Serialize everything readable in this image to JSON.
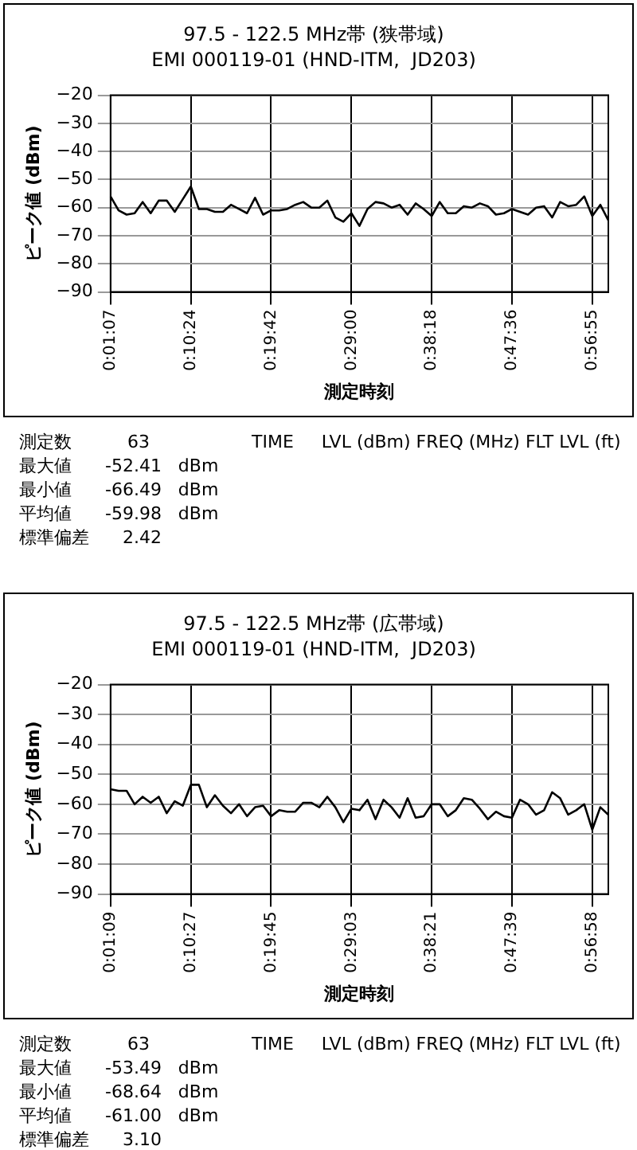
{
  "chart_data": [
    {
      "type": "line",
      "title": "97.5 - 122.5 MHz帯 (狭帯域)",
      "subtitle": "EMI 000119-01 (HND-ITM,  JD203)",
      "xlabel": "測定時刻",
      "ylabel": "ピーク値 (dBm)",
      "categories": [
        "0:01:07",
        null,
        null,
        null,
        null,
        null,
        null,
        null,
        null,
        null,
        "0:10:24",
        null,
        null,
        null,
        null,
        null,
        null,
        null,
        null,
        null,
        "0:19:42",
        null,
        null,
        null,
        null,
        null,
        null,
        null,
        null,
        null,
        "0:29:00",
        null,
        null,
        null,
        null,
        null,
        null,
        null,
        null,
        null,
        "0:38:18",
        null,
        null,
        null,
        null,
        null,
        null,
        null,
        null,
        null,
        "0:47:36",
        null,
        null,
        null,
        null,
        null,
        null,
        null,
        null,
        null,
        "0:56:55",
        null,
        null
      ],
      "series": [
        {
          "color": "#000000",
          "values": [
            -56,
            -61,
            -62.5,
            -62,
            -58,
            -62,
            -57.5,
            -57.5,
            -61.5,
            -57,
            -52.5,
            -60.5,
            -60.5,
            -61.5,
            -61.5,
            -59,
            -60.5,
            -62,
            -56.5,
            -62.5,
            -61,
            -61,
            -60.5,
            -59,
            -58,
            -60,
            -60,
            -57.5,
            -63.5,
            -65,
            -62,
            -66.5,
            -60.5,
            -58,
            -58.5,
            -60,
            -59,
            -62.5,
            -58.5,
            -60.5,
            -63,
            -58,
            -62,
            -62,
            -59.5,
            -60,
            -58.5,
            -59.5,
            -62.5,
            -62,
            -60.5,
            -61.5,
            -62.5,
            -60,
            -59.5,
            -63.5,
            -58,
            -59.5,
            -59,
            -56,
            -63,
            -59,
            -64.5
          ]
        }
      ],
      "ylim": [
        -90,
        -20
      ],
      "yticks": [
        -90,
        -80,
        -70,
        -60,
        -50,
        -40,
        -30,
        -20
      ],
      "grid": true,
      "legend": false,
      "marker": "none",
      "line_style": "solid",
      "annotations": [
        "TIME     LVL (dBm) FREQ (MHz) FLT LVL (ft)",
        "測定数          63",
        "最大値      -52.41   dBm",
        "最小値      -66.49   dBm",
        "平均値      -59.98   dBm",
        "標準偏差      2.42"
      ]
    },
    {
      "type": "line",
      "title": "97.5 - 122.5 MHz帯 (広帯域)",
      "subtitle": "EMI 000119-01 (HND-ITM,  JD203)",
      "xlabel": "測定時刻",
      "ylabel": "ピーク値 (dBm)",
      "categories": [
        "0:01:09",
        null,
        null,
        null,
        null,
        null,
        null,
        null,
        null,
        null,
        "0:10:27",
        null,
        null,
        null,
        null,
        null,
        null,
        null,
        null,
        null,
        "0:19:45",
        null,
        null,
        null,
        null,
        null,
        null,
        null,
        null,
        null,
        "0:29:03",
        null,
        null,
        null,
        null,
        null,
        null,
        null,
        null,
        null,
        "0:38:21",
        null,
        null,
        null,
        null,
        null,
        null,
        null,
        null,
        null,
        "0:47:39",
        null,
        null,
        null,
        null,
        null,
        null,
        null,
        null,
        null,
        "0:56:58",
        null,
        null
      ],
      "series": [
        {
          "color": "#000000",
          "values": [
            -55,
            -55.5,
            -55.5,
            -60,
            -57.5,
            -59.5,
            -57.5,
            -63,
            -59,
            -60.5,
            -53.5,
            -53.5,
            -61,
            -57,
            -60.5,
            -63,
            -60,
            -64,
            -61,
            -60.5,
            -64,
            -62,
            -62.5,
            -62.5,
            -59.5,
            -59.5,
            -61,
            -57.5,
            -61,
            -66,
            -61.5,
            -62,
            -58.5,
            -65,
            -58.5,
            -61,
            -64.5,
            -58,
            -64.5,
            -64,
            -60,
            -60,
            -64,
            -62,
            -58,
            -58.5,
            -61.5,
            -65,
            -62.5,
            -64,
            -64.5,
            -58.5,
            -60,
            -63.5,
            -62,
            -56,
            -58,
            -63.5,
            -62,
            -60,
            -68.5,
            -61,
            -63.5
          ]
        }
      ],
      "ylim": [
        -90,
        -20
      ],
      "yticks": [
        -90,
        -80,
        -70,
        -60,
        -50,
        -40,
        -30,
        -20
      ],
      "grid": true,
      "legend": false,
      "marker": "none",
      "line_style": "solid",
      "annotations": [
        "TIME     LVL (dBm) FREQ (MHz) FLT LVL (ft)",
        "測定数          63",
        "最大値      -53.49   dBm",
        "最小値      -68.64   dBm",
        "平均値      -61.00   dBm",
        "標準偏差      3.10"
      ]
    }
  ]
}
